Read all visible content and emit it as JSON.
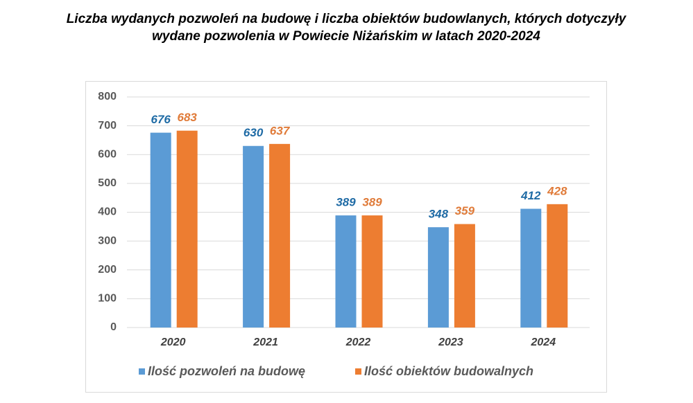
{
  "chart_data": {
    "type": "bar",
    "title": [
      "Liczba wydanych pozwoleń na budowę i liczba obiektów budowlanych, których dotyczyły",
      "wydane pozwolenia w Powiecie Niżańskim w latach 2020-2024"
    ],
    "categories": [
      "2020",
      "2021",
      "2022",
      "2023",
      "2024"
    ],
    "series": [
      {
        "name": "Ilość pozwoleń na budowę",
        "color": "#5b9bd5",
        "label_color": "#1f6ba5",
        "values": [
          676,
          630,
          389,
          348,
          412
        ]
      },
      {
        "name": "Ilość obiektów budowalnych",
        "color": "#ed7d31",
        "label_color": "#e07b39",
        "values": [
          683,
          637,
          389,
          359,
          428
        ]
      }
    ],
    "ylim": [
      0,
      800
    ],
    "yticks": [
      0,
      100,
      200,
      300,
      400,
      500,
      600,
      700,
      800
    ],
    "grid": true,
    "legend": "bottom"
  }
}
